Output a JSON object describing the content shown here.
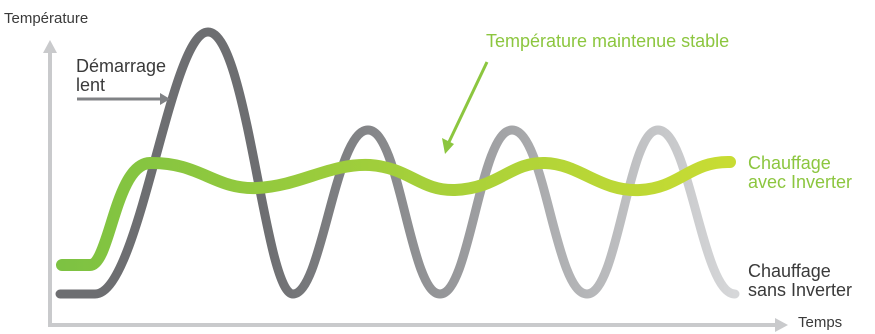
{
  "labels": {
    "y_axis": "Température",
    "x_axis": "Temps",
    "slow_start_line1": "Démarrage",
    "slow_start_line2": "lent",
    "stable_callout": "Température maintenue stable",
    "inverter_line1": "Chauffage",
    "inverter_line2": "avec Inverter",
    "no_inverter_line1": "Chauffage",
    "no_inverter_line2": "sans Inverter"
  },
  "colors": {
    "axis": "#c9cacc",
    "text_dark": "#3a3a3a",
    "green_text": "#8cc63f",
    "green_start": "#7dc242",
    "green_end": "#c8dc33",
    "grey_start": "#6d6e71",
    "grey_end": "#d6d7d9",
    "arrow_grey": "#808285",
    "callout_arrow": "#8cc63f"
  },
  "icons": {
    "x_axis_arrow": "arrowhead-right-icon",
    "y_axis_arrow": "arrowhead-up-icon"
  }
}
